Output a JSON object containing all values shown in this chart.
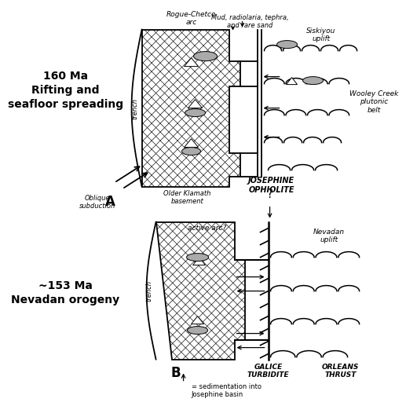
{
  "bg_color": "#ffffff",
  "panel_a_title": "160 Ma\nRifting and\nseafloor spreading",
  "panel_b_title": "~153 Ma\nNevadan orogeny",
  "label_A": "A",
  "label_B": "B",
  "oblique_text": "Oblique\nsubduction",
  "rogue_text": "Rogue-Chetco\narc",
  "older_klamath": "Older Klamath\nbasement",
  "josephine": "JOSEPHINE\nOPHIOLITE",
  "mud_text": "Mud, radiolaria, tephra,\nand rare sand",
  "siskiyou": "Siskiyou\nuplift",
  "wooley": "Wooley Creek\nplutonic\nbelt",
  "trench_text": "trench",
  "active_arc": "active arc?",
  "galice": "GALICE\nTURBIDITE",
  "orleans": "ORLEANS\nTHRUST",
  "nevadan": "Nevadan\nuplift",
  "sedimentation": "= sedimentation into\nJosephine basin",
  "question_mark": "?"
}
